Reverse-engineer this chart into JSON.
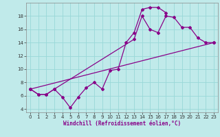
{
  "xlabel": "Windchill (Refroidissement éolien,°C)",
  "bg_color": "#c0eaea",
  "line_color": "#880088",
  "grid_color": "#98d8d8",
  "xlim": [
    -0.5,
    23.5
  ],
  "ylim": [
    3.5,
    20.0
  ],
  "yticks": [
    4,
    6,
    8,
    10,
    12,
    14,
    16,
    18
  ],
  "xticks": [
    0,
    1,
    2,
    3,
    4,
    5,
    6,
    7,
    8,
    9,
    10,
    11,
    12,
    13,
    14,
    15,
    16,
    17,
    18,
    19,
    20,
    21,
    22,
    23
  ],
  "series1_x": [
    0,
    1,
    2,
    3,
    4,
    5,
    6,
    7,
    8,
    9,
    10,
    11,
    12,
    13,
    14,
    15,
    16,
    17
  ],
  "series1_y": [
    7.0,
    6.2,
    6.2,
    7.0,
    5.8,
    4.2,
    5.8,
    7.2,
    8.0,
    7.0,
    9.8,
    10.0,
    14.0,
    15.5,
    19.0,
    19.3,
    19.3,
    18.5
  ],
  "series2_x": [
    0,
    1,
    2,
    3,
    13,
    14,
    15,
    16,
    17,
    18,
    19,
    20,
    21,
    22,
    23
  ],
  "series2_y": [
    7.0,
    6.2,
    6.2,
    7.0,
    14.5,
    18.0,
    16.0,
    15.5,
    18.0,
    17.8,
    16.3,
    16.3,
    14.7,
    14.0,
    14.0
  ],
  "series3_x": [
    0,
    23
  ],
  "series3_y": [
    7.0,
    14.0
  ],
  "tick_fontsize": 5,
  "label_fontsize": 5.5
}
